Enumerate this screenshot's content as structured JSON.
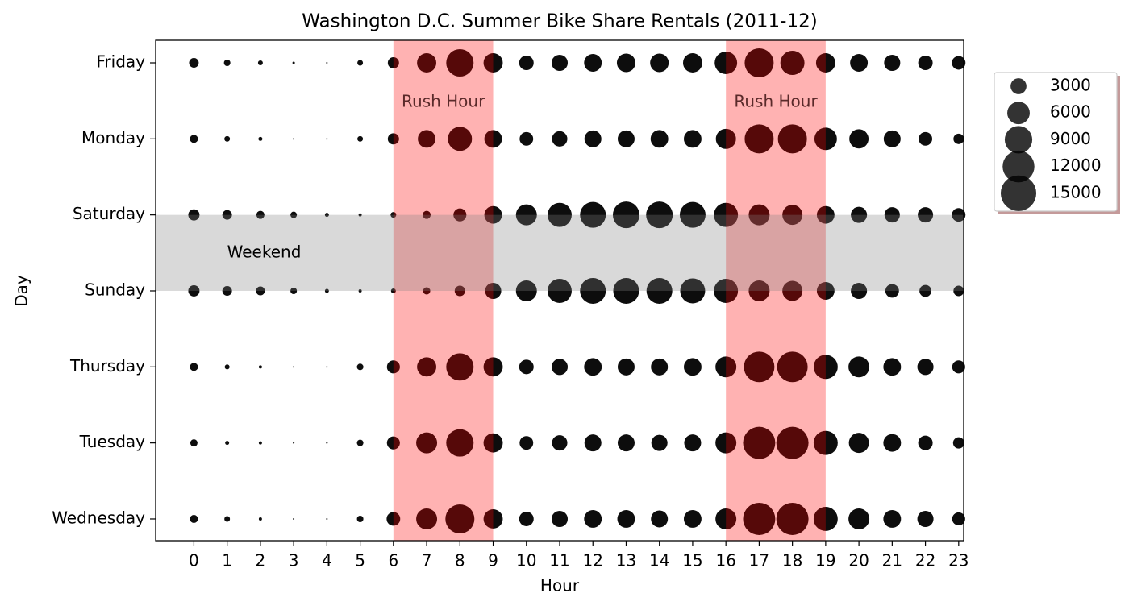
{
  "chart_data": {
    "type": "bubble",
    "title": "Washington D.C. Summer Bike Share Rentals (2011-12)",
    "x_label": "Hour",
    "y_label": "Day",
    "x": [
      0,
      1,
      2,
      3,
      4,
      5,
      6,
      7,
      8,
      9,
      10,
      11,
      12,
      13,
      14,
      15,
      16,
      17,
      18,
      19,
      20,
      21,
      22,
      23
    ],
    "xlim": [
      -1.15,
      23.15
    ],
    "xticks": [
      0,
      1,
      2,
      3,
      4,
      5,
      6,
      7,
      8,
      9,
      10,
      11,
      12,
      13,
      14,
      15,
      16,
      17,
      18,
      19,
      20,
      21,
      22,
      23
    ],
    "categories": [
      "Friday",
      "Monday",
      "Saturday",
      "Sunday",
      "Thursday",
      "Tuesday",
      "Wednesday"
    ],
    "color": "#000000",
    "sizes": [
      [
        1100,
        500,
        280,
        70,
        30,
        380,
        1500,
        4400,
        8900,
        4400,
        2500,
        3100,
        3700,
        4100,
        4100,
        4400,
        6000,
        10000,
        6900,
        4400,
        3700,
        3100,
        2500,
        2200
      ],
      [
        770,
        380,
        190,
        30,
        30,
        380,
        1500,
        3700,
        6900,
        3700,
        2200,
        2800,
        3400,
        3400,
        3700,
        3700,
        4800,
        10000,
        10000,
        6000,
        4400,
        3400,
        2200,
        1300
      ],
      [
        1500,
        1100,
        770,
        500,
        190,
        120,
        380,
        770,
        2000,
        3700,
        5200,
        6900,
        7900,
        8400,
        8400,
        7900,
        6900,
        5200,
        4800,
        3700,
        3100,
        2800,
        2800,
        2200
      ],
      [
        1500,
        1100,
        930,
        500,
        190,
        120,
        280,
        620,
        1300,
        3100,
        5200,
        6900,
        7900,
        7900,
        7900,
        7400,
        6900,
        5200,
        4800,
        3700,
        3100,
        2200,
        1700,
        1300
      ],
      [
        770,
        280,
        120,
        30,
        30,
        500,
        2000,
        4400,
        8900,
        4400,
        2500,
        3100,
        3700,
        3400,
        3400,
        3700,
        5200,
        11100,
        11100,
        6900,
        5200,
        3700,
        3100,
        2000
      ],
      [
        620,
        190,
        120,
        30,
        30,
        500,
        2000,
        5200,
        8900,
        4400,
        2200,
        2800,
        3400,
        3400,
        3100,
        3400,
        5200,
        12300,
        12300,
        6900,
        4800,
        3700,
        2500,
        1500
      ],
      [
        770,
        380,
        120,
        30,
        30,
        500,
        2200,
        5200,
        10000,
        4400,
        2500,
        3100,
        3700,
        3700,
        3400,
        3700,
        5200,
        12300,
        12300,
        6900,
        5200,
        3700,
        3100,
        2000
      ]
    ],
    "size_legend": [
      3000,
      6000,
      9000,
      12000,
      15000
    ],
    "rush_hours": [
      {
        "label": "Rush Hour",
        "xlim": [
          6,
          9
        ],
        "color": "#ff0000"
      },
      {
        "label": "Rush Hour",
        "xlim": [
          16,
          19
        ],
        "color": "#ff0000"
      }
    ],
    "weekend": {
      "label": "Weekend",
      "rows": [
        2,
        3
      ],
      "color": "#808080"
    }
  }
}
